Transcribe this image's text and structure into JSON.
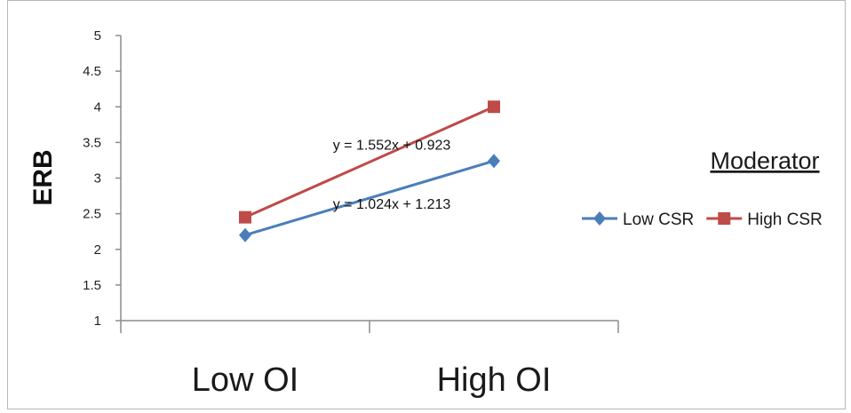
{
  "chart_data": {
    "type": "line",
    "categories": [
      "Low OI",
      "High OI"
    ],
    "ylabel": "ERB",
    "xlabel": "",
    "title": "",
    "ylim": [
      1,
      5
    ],
    "yticks": [
      "1",
      "1.5",
      "2",
      "2.5",
      "3",
      "3.5",
      "4",
      "4.5",
      "5"
    ],
    "grid": false,
    "legend": {
      "title": "Moderator",
      "placement": "right"
    },
    "series": [
      {
        "name": "Low CSR",
        "values": [
          2.2,
          3.24
        ],
        "color": "#4a7ebb",
        "marker": "diamond",
        "equation": "y = 1.024x + 1.213"
      },
      {
        "name": "High CSR",
        "values": [
          2.45,
          4.0
        ],
        "color": "#be4b48",
        "marker": "square",
        "equation": "y = 1.552x + 0.923"
      }
    ]
  }
}
